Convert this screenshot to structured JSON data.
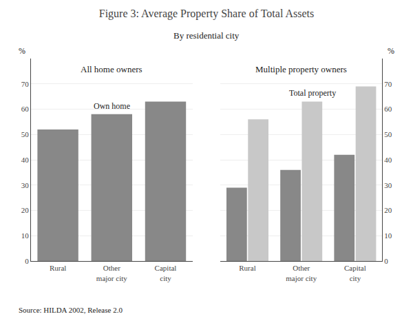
{
  "chart_data": {
    "type": "bar",
    "title": "Figure 3: Average Property Share of Total Assets",
    "subtitle": "By residential city",
    "source": "Source: HILDA 2002, Release 2.0",
    "categories": [
      "Rural",
      "Other\nmajor city",
      "Capital\ncity"
    ],
    "ylim": [
      0,
      80
    ],
    "yticks": [
      0,
      10,
      20,
      30,
      40,
      50,
      60,
      70
    ],
    "y_label": "%",
    "grid": true,
    "panels": [
      {
        "title": "All home owners",
        "series": [
          {
            "name": "Own home",
            "color": "#888888",
            "values": [
              52,
              58,
              63
            ]
          }
        ]
      },
      {
        "title": "Multiple property owners",
        "series": [
          {
            "color": "#888888",
            "values": [
              29,
              36,
              42
            ]
          },
          {
            "name": "Total property",
            "color": "#c8c8c8",
            "values": [
              56,
              63,
              69
            ]
          }
        ]
      }
    ]
  }
}
